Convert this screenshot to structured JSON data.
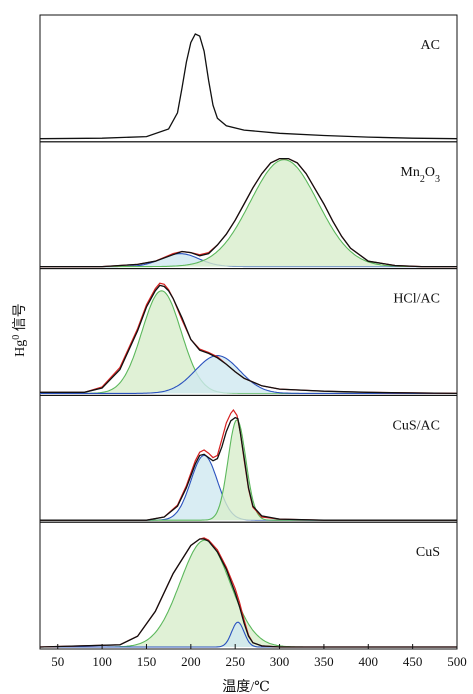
{
  "chart_data": {
    "type": "line",
    "layout": "stacked-panels",
    "xlabel": "温度/℃",
    "ylabel_main": "Hg",
    "ylabel_sup": "0",
    "ylabel_rest": " 信号",
    "xlim": [
      30,
      500
    ],
    "xticks": [
      50,
      100,
      150,
      200,
      250,
      300,
      350,
      400,
      450,
      500
    ],
    "colors": {
      "measured": "#111111",
      "fitted_sum": "#d62020",
      "peak_green_line": "#5cb85c",
      "peak_green_fill": "#d8edcc",
      "peak_blue_line": "#2a52be",
      "peak_blue_fill": "#cfe8f0"
    },
    "panels": [
      {
        "label": "AC",
        "label_parts": [],
        "measured": {
          "x": [
            30,
            100,
            150,
            175,
            185,
            190,
            195,
            200,
            205,
            210,
            215,
            220,
            225,
            230,
            240,
            260,
            300,
            350,
            400,
            450,
            500
          ],
          "y": [
            0.01,
            0.015,
            0.03,
            0.1,
            0.25,
            0.48,
            0.72,
            0.9,
            0.98,
            0.96,
            0.82,
            0.55,
            0.32,
            0.2,
            0.13,
            0.09,
            0.06,
            0.04,
            0.025,
            0.015,
            0.01
          ]
        },
        "peaks": [],
        "ylim": [
          0,
          1.1
        ]
      },
      {
        "label": "",
        "label_parts": [
          {
            "text": "Mn",
            "sub": false
          },
          {
            "text": "2",
            "sub": true
          },
          {
            "text": "O",
            "sub": false
          },
          {
            "text": "3",
            "sub": true
          }
        ],
        "measured": {
          "x": [
            30,
            100,
            140,
            160,
            180,
            190,
            200,
            210,
            220,
            230,
            240,
            250,
            260,
            270,
            280,
            290,
            300,
            310,
            320,
            330,
            340,
            350,
            360,
            370,
            380,
            400,
            430,
            460,
            500
          ],
          "y": [
            0.0,
            0.0,
            0.02,
            0.05,
            0.11,
            0.14,
            0.13,
            0.1,
            0.12,
            0.2,
            0.3,
            0.43,
            0.58,
            0.73,
            0.86,
            0.96,
            1.0,
            1.0,
            0.96,
            0.86,
            0.72,
            0.58,
            0.42,
            0.28,
            0.17,
            0.05,
            0.01,
            0.0,
            0.0
          ]
        },
        "fitted": {
          "x": [
            30,
            100,
            140,
            160,
            180,
            190,
            200,
            210,
            220,
            230,
            240,
            250,
            260,
            270,
            280,
            290,
            300,
            310,
            320,
            330,
            340,
            350,
            360,
            370,
            380,
            400,
            430,
            460,
            500
          ],
          "y": [
            0.0,
            0.0,
            0.02,
            0.05,
            0.12,
            0.14,
            0.13,
            0.11,
            0.13,
            0.2,
            0.3,
            0.43,
            0.58,
            0.73,
            0.86,
            0.96,
            1.0,
            1.0,
            0.96,
            0.86,
            0.72,
            0.58,
            0.42,
            0.28,
            0.17,
            0.05,
            0.01,
            0.0,
            0.0
          ]
        },
        "peaks": [
          {
            "color": "blue",
            "center": 188,
            "height": 0.12,
            "sigma": 21
          },
          {
            "color": "green",
            "center": 305,
            "height": 0.99,
            "sigma": 38
          }
        ],
        "ylim": [
          0,
          1.1
        ]
      },
      {
        "label": "HCl/AC",
        "label_parts": [],
        "measured": {
          "x": [
            30,
            80,
            100,
            120,
            140,
            150,
            160,
            165,
            170,
            175,
            180,
            190,
            200,
            210,
            220,
            230,
            240,
            250,
            260,
            280,
            300,
            350,
            400,
            450,
            500
          ],
          "y": [
            0.01,
            0.01,
            0.05,
            0.22,
            0.58,
            0.8,
            0.95,
            1.0,
            0.99,
            0.95,
            0.88,
            0.7,
            0.5,
            0.4,
            0.37,
            0.33,
            0.27,
            0.2,
            0.14,
            0.07,
            0.04,
            0.02,
            0.01,
            0.005,
            0.0
          ]
        },
        "fitted": {
          "x": [
            30,
            80,
            100,
            120,
            140,
            150,
            160,
            165,
            170,
            175,
            180,
            190,
            200,
            210,
            220,
            230,
            240,
            250,
            260,
            280,
            300,
            350,
            400,
            450,
            500
          ],
          "y": [
            0.01,
            0.01,
            0.06,
            0.24,
            0.6,
            0.82,
            0.97,
            1.02,
            1.01,
            0.96,
            0.88,
            0.68,
            0.5,
            0.41,
            0.38,
            0.34,
            0.27,
            0.2,
            0.14,
            0.07,
            0.04,
            0.02,
            0.01,
            0.005,
            0.0
          ]
        },
        "peaks": [
          {
            "color": "green",
            "center": 167,
            "height": 0.95,
            "sigma": 22
          },
          {
            "color": "blue",
            "center": 230,
            "height": 0.35,
            "sigma": 25
          }
        ],
        "ylim": [
          0,
          1.1
        ]
      },
      {
        "label": "CuS/AC",
        "label_parts": [],
        "measured": {
          "x": [
            30,
            150,
            170,
            185,
            195,
            205,
            210,
            215,
            220,
            225,
            230,
            235,
            240,
            245,
            250,
            253,
            256,
            260,
            265,
            270,
            280,
            300,
            350,
            400,
            500
          ],
          "y": [
            0.0,
            0.0,
            0.03,
            0.13,
            0.3,
            0.52,
            0.6,
            0.61,
            0.58,
            0.55,
            0.57,
            0.68,
            0.82,
            0.92,
            0.95,
            0.94,
            0.8,
            0.58,
            0.3,
            0.13,
            0.04,
            0.01,
            0.0,
            0.0,
            0.0
          ]
        },
        "fitted": {
          "x": [
            30,
            150,
            170,
            185,
            195,
            205,
            210,
            215,
            220,
            225,
            230,
            235,
            240,
            245,
            248,
            252,
            256,
            260,
            265,
            270,
            280,
            300,
            350,
            400,
            500
          ],
          "y": [
            0.0,
            0.0,
            0.03,
            0.14,
            0.32,
            0.55,
            0.63,
            0.65,
            0.62,
            0.58,
            0.6,
            0.75,
            0.9,
            0.99,
            1.02,
            0.97,
            0.8,
            0.56,
            0.29,
            0.12,
            0.03,
            0.01,
            0.0,
            0.0,
            0.0
          ]
        },
        "peaks": [
          {
            "color": "blue",
            "center": 215,
            "height": 0.6,
            "sigma": 15
          },
          {
            "color": "green",
            "center": 252,
            "height": 0.93,
            "sigma": 10
          }
        ],
        "ylim": [
          0,
          1.1
        ]
      },
      {
        "label": "CuS",
        "label_parts": [],
        "measured": {
          "x": [
            30,
            120,
            140,
            160,
            180,
            200,
            210,
            215,
            220,
            230,
            240,
            250,
            255,
            260,
            265,
            270,
            280,
            300,
            350,
            500
          ],
          "y": [
            0.0,
            0.02,
            0.1,
            0.33,
            0.68,
            0.94,
            1.0,
            1.0,
            0.98,
            0.88,
            0.72,
            0.5,
            0.37,
            0.22,
            0.1,
            0.04,
            0.01,
            0.0,
            0.0,
            0.0
          ]
        },
        "fitted": {
          "x": [
            30,
            120,
            140,
            160,
            180,
            200,
            210,
            215,
            220,
            230,
            240,
            250,
            255,
            260,
            265,
            270,
            280,
            300,
            350,
            500
          ],
          "y": [
            0.0,
            0.02,
            0.1,
            0.33,
            0.68,
            0.94,
            1.0,
            1.01,
            0.99,
            0.9,
            0.74,
            0.54,
            0.41,
            0.25,
            0.11,
            0.04,
            0.01,
            0.0,
            0.0,
            0.0
          ]
        },
        "peaks": [
          {
            "color": "green",
            "center": 216,
            "height": 0.99,
            "sigma": 28
          },
          {
            "color": "blue",
            "center": 253,
            "height": 0.23,
            "sigma": 7
          }
        ],
        "ylim": [
          0,
          1.1
        ]
      }
    ]
  }
}
